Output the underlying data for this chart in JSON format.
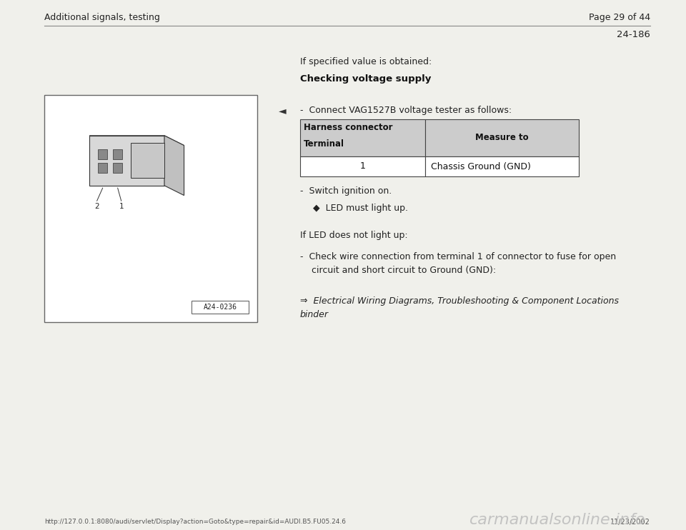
{
  "bg_color": "#f0f0eb",
  "header_left": "Additional signals, testing",
  "header_right": "Page 29 of 44",
  "section_number": "24-186",
  "footer_url": "http://127.0.0.1:8080/audi/servlet/Display?action=Goto&type=repair&id=AUDI.B5.FU05.24.6",
  "footer_date": "11/23/2002",
  "footer_logo": "carmanualsonline.info",
  "text_if_specified": "If specified value is obtained:",
  "text_checking": "Checking voltage supply",
  "text_connect": "-  Connect VAG1527B voltage tester as follows:",
  "table_header1": "Harness connector",
  "table_header2": "Measure to",
  "table_subheader1": "Terminal",
  "table_row1_col1": "1",
  "table_row1_col2": "Chassis Ground (GND)",
  "text_switch": "-  Switch ignition on.",
  "text_led_bullet": "◆  LED must light up.",
  "text_if_led": "If LED does not light up:",
  "text_check": "-  Check wire connection from terminal 1 of connector to fuse for open\n    circuit and short circuit to Ground (GND):",
  "text_electrical": "⇒  Electrical Wiring Diagrams, Troubleshooting & Component Locations\nbinder",
  "image_label": "A24-0236",
  "table_header_bg": "#cccccc",
  "table_border_color": "#444444",
  "font_size_body": 9.0
}
